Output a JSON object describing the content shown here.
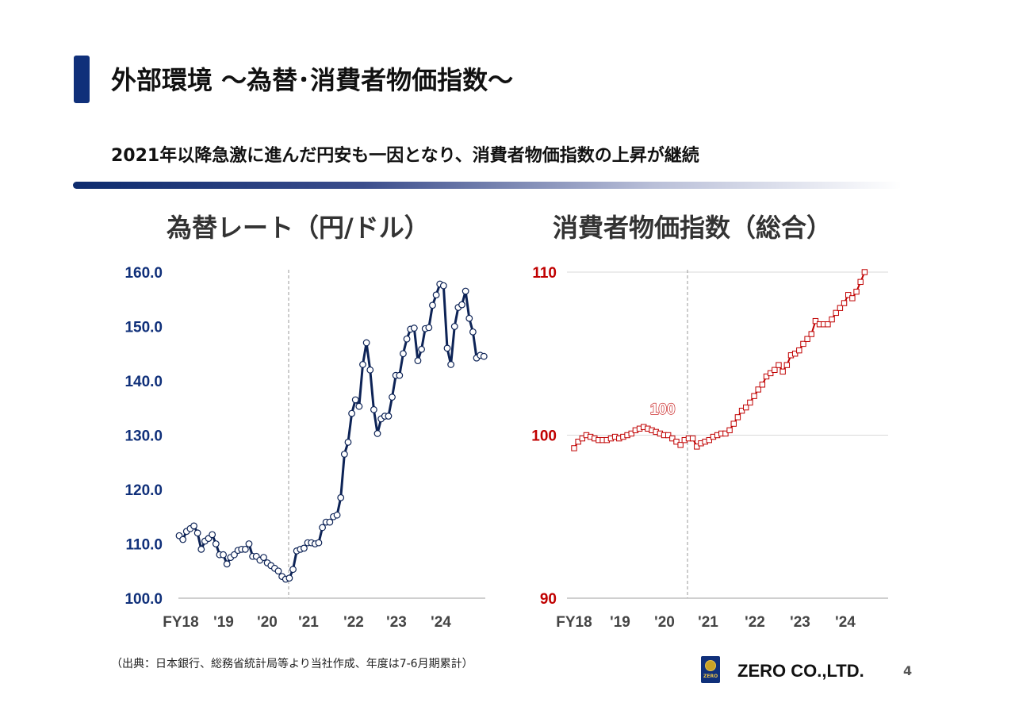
{
  "header": {
    "title": "外部環境 ～為替･消費者物価指数～",
    "subtitle": "2021年以降急激に進んだ円安も一因となり、消費者物価指数の上昇が継続"
  },
  "colors": {
    "accent": "#10307a",
    "fx_line": "#0d2356",
    "cpi_line": "#c00000"
  },
  "chart_data": [
    {
      "type": "line",
      "title": "為替レート（円/ドル）",
      "ylim": [
        100,
        160
      ],
      "yticks": [
        "160.0",
        "150.0",
        "140.0",
        "130.0",
        "120.0",
        "110.0",
        "100.0"
      ],
      "xticks": [
        "FY18",
        "'19",
        "'20",
        "'21",
        "'22",
        "'23",
        "'24"
      ],
      "divider_at": "'21",
      "series": [
        {
          "values": [
            111.5,
            110.8,
            112.3,
            112.8,
            113.3,
            112.0,
            109.0,
            110.5,
            111.0,
            111.7,
            110.0,
            108.0,
            108.0,
            106.3,
            107.5,
            108.0,
            108.8,
            109.0,
            109.0,
            110.0,
            107.7,
            107.7,
            107.0,
            107.5,
            106.5,
            106.0,
            105.5,
            105.0,
            104.0,
            103.5,
            103.7,
            105.3,
            108.7,
            109.0,
            109.2,
            110.2,
            110.2,
            110.0,
            110.2,
            113.0,
            114.0,
            114.0,
            115.0,
            115.3,
            118.5,
            126.5,
            128.7,
            134.0,
            136.5,
            135.3,
            143.0,
            147.0,
            142.0,
            134.7,
            130.3,
            133.0,
            133.5,
            133.5,
            137.0,
            141.0,
            141.0,
            145.0,
            147.7,
            149.5,
            149.7,
            143.7,
            145.8,
            149.6,
            149.8,
            153.9,
            155.8,
            157.8,
            157.5,
            146.0,
            143.0,
            150.0,
            153.5,
            154.0,
            156.5,
            151.5,
            149.0,
            144.2,
            144.7,
            144.5
          ]
        }
      ]
    },
    {
      "type": "line",
      "title": "消費者物価指数（総合）",
      "ylim": [
        90,
        110
      ],
      "yticks": [
        "110",
        "100",
        "90"
      ],
      "xticks": [
        "FY18",
        "'19",
        "'20",
        "'21",
        "'22",
        "'23",
        "'24"
      ],
      "divider_at": "'21",
      "annotation": {
        "text": "100",
        "at_index": 17
      },
      "series": [
        {
          "values": [
            99.2,
            99.6,
            99.8,
            100.0,
            99.9,
            99.8,
            99.7,
            99.7,
            99.7,
            99.8,
            99.9,
            99.8,
            99.9,
            100.0,
            100.1,
            100.3,
            100.4,
            100.5,
            100.4,
            100.3,
            100.2,
            100.1,
            100.0,
            100.0,
            99.8,
            99.6,
            99.4,
            99.7,
            99.8,
            99.8,
            99.3,
            99.5,
            99.6,
            99.7,
            99.9,
            100.0,
            100.1,
            100.1,
            100.3,
            100.7,
            101.1,
            101.5,
            101.7,
            102.0,
            102.4,
            102.8,
            103.1,
            103.6,
            103.8,
            104.0,
            104.3,
            103.9,
            104.3,
            104.9,
            105.0,
            105.2,
            105.6,
            105.9,
            106.2,
            107.0,
            106.8,
            106.8,
            106.8,
            107.1,
            107.5,
            107.8,
            108.1,
            108.6,
            108.4,
            108.8,
            109.4,
            110.0
          ]
        }
      ]
    }
  ],
  "footer": {
    "source": "（出典：日本銀行、総務省統計局等より当社作成、年度は7-6月期累計）",
    "company": "ZERO CO.,LTD.",
    "page": "4",
    "logo_text": "ZERO"
  }
}
